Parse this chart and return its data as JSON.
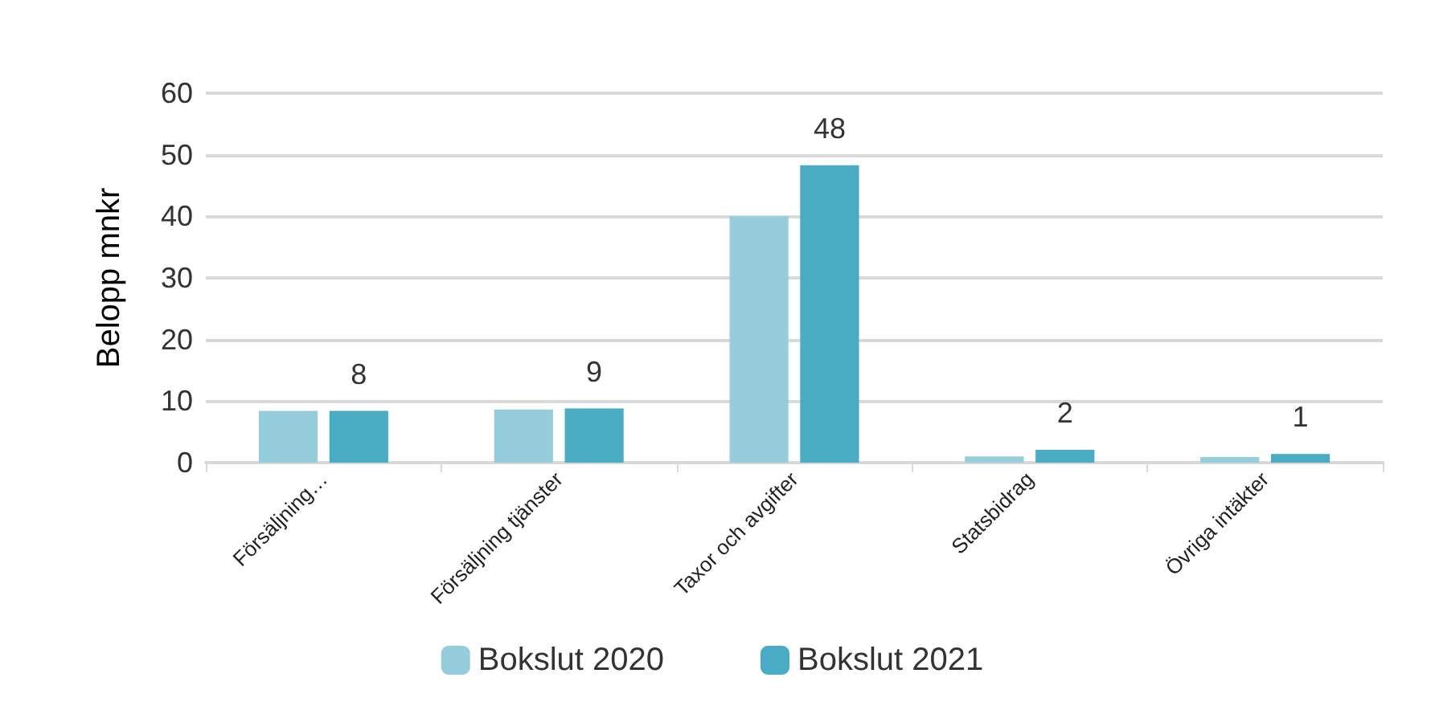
{
  "chart_data": {
    "type": "bar",
    "ylabel": "Belopp mnkr",
    "categories": [
      "Försäljning…",
      "Försäljning tjänster",
      "Taxor och avgifter",
      "Statsbidrag",
      "Övriga intäkter"
    ],
    "series": [
      {
        "name": "Bokslut 2020",
        "color": "#96cddd",
        "values": [
          8.4,
          8.6,
          40,
          1.0,
          0.9
        ]
      },
      {
        "name": "Bokslut 2021",
        "color": "#4aabc5",
        "values": [
          8.4,
          8.8,
          48.3,
          2.1,
          1.4
        ],
        "value_labels": [
          "8",
          "9",
          "48",
          "2",
          "1"
        ]
      }
    ],
    "ylim": [
      0,
      60
    ],
    "yticks": [
      0,
      10,
      20,
      30,
      40,
      50,
      60
    ],
    "grid": "y",
    "legend": "bottom"
  }
}
